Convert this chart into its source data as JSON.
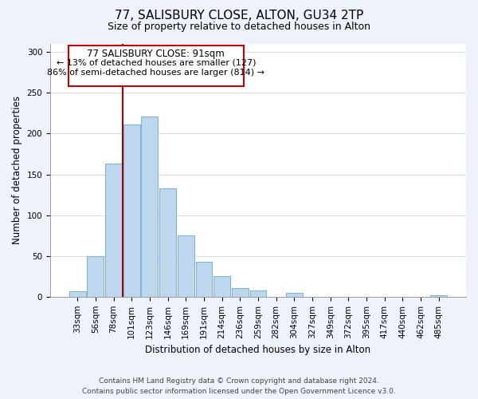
{
  "title": "77, SALISBURY CLOSE, ALTON, GU34 2TP",
  "subtitle": "Size of property relative to detached houses in Alton",
  "xlabel": "Distribution of detached houses by size in Alton",
  "ylabel": "Number of detached properties",
  "bar_labels": [
    "33sqm",
    "56sqm",
    "78sqm",
    "101sqm",
    "123sqm",
    "146sqm",
    "169sqm",
    "191sqm",
    "214sqm",
    "236sqm",
    "259sqm",
    "282sqm",
    "304sqm",
    "327sqm",
    "349sqm",
    "372sqm",
    "395sqm",
    "417sqm",
    "440sqm",
    "462sqm",
    "485sqm"
  ],
  "bar_values": [
    7,
    50,
    163,
    211,
    221,
    133,
    75,
    43,
    25,
    11,
    8,
    0,
    5,
    0,
    0,
    0,
    0,
    0,
    0,
    0,
    2
  ],
  "bar_color": "#bdd7ee",
  "bar_edge_color": "#7ab0d4",
  "vline_color": "#aa0000",
  "annotation_title": "77 SALISBURY CLOSE: 91sqm",
  "annotation_line1": "← 13% of detached houses are smaller (127)",
  "annotation_line2": "86% of semi-detached houses are larger (814) →",
  "annotation_box_color": "#ffffff",
  "annotation_box_edgecolor": "#cc0000",
  "ylim": [
    0,
    310
  ],
  "yticks": [
    0,
    50,
    100,
    150,
    200,
    250,
    300
  ],
  "footer1": "Contains HM Land Registry data © Crown copyright and database right 2024.",
  "footer2": "Contains public sector information licensed under the Open Government Licence v3.0.",
  "bg_color": "#eef2fa",
  "plot_bg_color": "#ffffff",
  "title_fontsize": 11,
  "subtitle_fontsize": 9,
  "axis_label_fontsize": 8.5,
  "tick_fontsize": 7.5,
  "annotation_fontsize": 8.5,
  "footer_fontsize": 6.5
}
